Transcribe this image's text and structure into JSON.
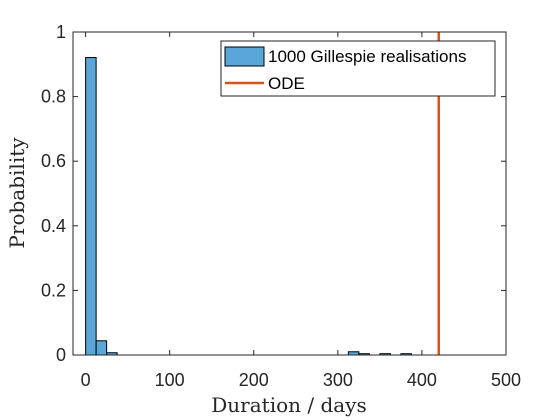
{
  "chart_data": {
    "type": "bar",
    "xlabel": "Duration / days",
    "ylabel": "Probability",
    "xlim": [
      -15,
      500
    ],
    "ylim": [
      0,
      1
    ],
    "xticks": [
      0,
      100,
      200,
      300,
      400,
      500
    ],
    "yticks": [
      0,
      0.2,
      0.4,
      0.6,
      0.8,
      1
    ],
    "ytick_labels": [
      "0",
      "0.2",
      "0.4",
      "0.6",
      "0.8",
      "1"
    ],
    "bin_width": 12.5,
    "bins": [
      {
        "start": 0,
        "value": 0.921
      },
      {
        "start": 12.5,
        "value": 0.044
      },
      {
        "start": 25,
        "value": 0.007
      },
      {
        "start": 312.5,
        "value": 0.01
      },
      {
        "start": 325,
        "value": 0.004
      },
      {
        "start": 350,
        "value": 0.004
      },
      {
        "start": 375,
        "value": 0.004
      }
    ],
    "ode_x": 420,
    "grid": false,
    "legend_position": "top-right",
    "series": [
      {
        "name": "1000 Gillespie realisations",
        "kind": "histogram",
        "color": "#5ba6d8"
      },
      {
        "name": "ODE",
        "kind": "vertical-line",
        "color": "#d95319"
      }
    ]
  }
}
